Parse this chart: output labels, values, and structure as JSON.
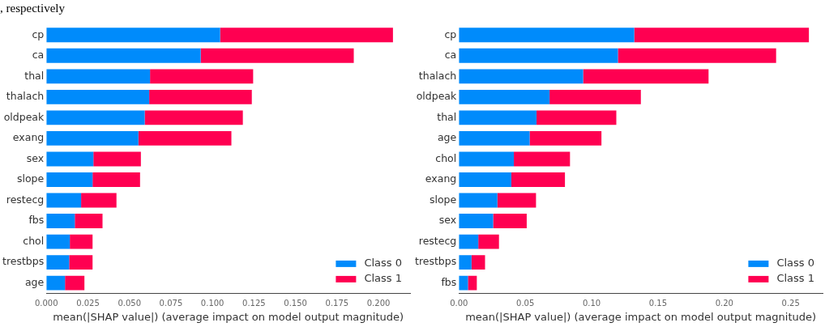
{
  "chart_data": [
    {
      "type": "bar",
      "orientation": "horizontal",
      "stacked": true,
      "annotations": [
        ", respectively"
      ],
      "xlabel": "mean(|SHAP value|) (average impact on model output magnitude)",
      "categories": [
        "cp",
        "ca",
        "thal",
        "thalach",
        "oldpeak",
        "exang",
        "sex",
        "slope",
        "restecg",
        "fbs",
        "chol",
        "trestbps",
        "age"
      ],
      "series": [
        {
          "name": "Class 0",
          "color": "#008bfb",
          "values": [
            0.1046,
            0.0929,
            0.0624,
            0.0619,
            0.0592,
            0.0554,
            0.0283,
            0.0278,
            0.0209,
            0.0171,
            0.0141,
            0.0137,
            0.0112
          ]
        },
        {
          "name": "Class 1",
          "color": "#ff0051",
          "values": [
            0.1041,
            0.0922,
            0.0621,
            0.0618,
            0.0591,
            0.056,
            0.0286,
            0.0286,
            0.0213,
            0.0167,
            0.0137,
            0.0141,
            0.0117
          ]
        }
      ],
      "xlim": [
        0,
        0.219
      ],
      "xticks": [
        {
          "value": 0,
          "label": "0.000"
        },
        {
          "value": 0.025,
          "label": "0.025"
        },
        {
          "value": 0.05,
          "label": "0.050"
        },
        {
          "value": 0.075,
          "label": "0.075"
        },
        {
          "value": 0.1,
          "label": "0.100"
        },
        {
          "value": 0.125,
          "label": "0.125"
        },
        {
          "value": 0.15,
          "label": "0.150"
        },
        {
          "value": 0.175,
          "label": "0.175"
        },
        {
          "value": 0.2,
          "label": "0.200"
        }
      ],
      "grid": false,
      "legend": "bottom right"
    },
    {
      "type": "bar",
      "orientation": "horizontal",
      "stacked": true,
      "xlabel": "mean(|SHAP value|) (average impact on model output magnitude)",
      "categories": [
        "cp",
        "ca",
        "thalach",
        "oldpeak",
        "thal",
        "age",
        "chol",
        "exang",
        "slope",
        "sex",
        "restecg",
        "trestbps",
        "fbs"
      ],
      "series": [
        {
          "name": "Class 0",
          "color": "#008bfb",
          "values": [
            0.1321,
            0.1198,
            0.0936,
            0.0683,
            0.0585,
            0.0533,
            0.0414,
            0.0395,
            0.029,
            0.0258,
            0.0146,
            0.0095,
            0.0068
          ]
        },
        {
          "name": "Class 1",
          "color": "#ff0051",
          "values": [
            0.1316,
            0.1192,
            0.0945,
            0.0688,
            0.0601,
            0.0541,
            0.0423,
            0.0404,
            0.0291,
            0.0253,
            0.0156,
            0.0102,
            0.0067
          ]
        }
      ],
      "xlim": [
        0,
        0.274
      ],
      "xticks": [
        {
          "value": 0,
          "label": "0.00"
        },
        {
          "value": 0.05,
          "label": "0.05"
        },
        {
          "value": 0.1,
          "label": "0.10"
        },
        {
          "value": 0.15,
          "label": "0.15"
        },
        {
          "value": 0.2,
          "label": "0.20"
        },
        {
          "value": 0.25,
          "label": "0.25"
        }
      ],
      "grid": false,
      "legend": "bottom right"
    }
  ]
}
